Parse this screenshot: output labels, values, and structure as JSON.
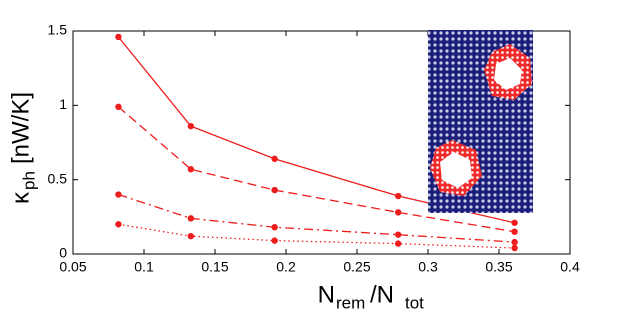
{
  "chart_data": {
    "type": "line",
    "x_label": {
      "main": "N",
      "sub1": "rem",
      "mid": "/N",
      "sub2": "tot"
    },
    "y_label": {
      "main": "κ",
      "sub": "ph",
      "unit": "[nW/K]"
    },
    "x": [
      0.082,
      0.133,
      0.192,
      0.279,
      0.361
    ],
    "series": [
      {
        "style": "solid",
        "color": "#ee1c1c",
        "values": [
          1.46,
          0.86,
          0.64,
          0.39,
          0.21
        ]
      },
      {
        "style": "dashed",
        "color": "#ee1c1c",
        "values": [
          0.99,
          0.57,
          0.43,
          0.28,
          0.15
        ]
      },
      {
        "style": "dashdot",
        "color": "#ee1c1c",
        "values": [
          0.4,
          0.24,
          0.18,
          0.13,
          0.08
        ]
      },
      {
        "style": "dotted",
        "color": "#ee1c1c",
        "values": [
          0.2,
          0.12,
          0.09,
          0.07,
          0.04
        ]
      }
    ],
    "xlim": [
      0.05,
      0.4
    ],
    "xticks": [
      0.05,
      0.1,
      0.15,
      0.2,
      0.25,
      0.3,
      0.35,
      0.4
    ],
    "ylim": [
      0,
      1.5
    ],
    "yticks": [
      0,
      0.5,
      1,
      1.5
    ],
    "grid": false
  }
}
